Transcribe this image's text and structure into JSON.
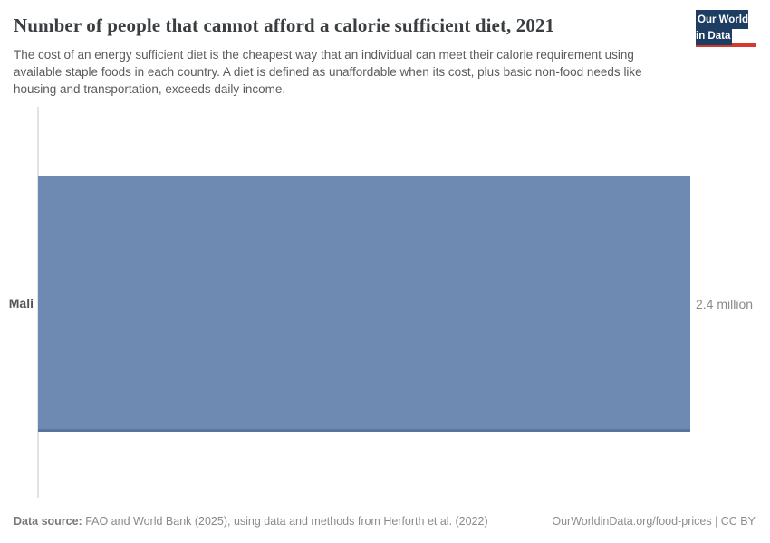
{
  "header": {
    "title": "Number of people that cannot afford a calorie sufficient diet, 2021",
    "subtitle": "The cost of an energy sufficient diet is the cheapest way that an individual can meet their calorie requirement using available staple foods in each country. A diet is defined as unaffordable when its cost, plus basic non-food needs like housing and transportation, exceeds daily income.",
    "logo": {
      "line1": "Our World",
      "line2": "in Data",
      "background_color": "#1d3d63",
      "accent_color": "#d4392e"
    }
  },
  "chart_data": {
    "type": "bar",
    "orientation": "horizontal",
    "title": "Number of people that cannot afford a calorie sufficient diet, 2021",
    "year": "2021",
    "categories": [
      "Mali"
    ],
    "values": [
      2400000
    ],
    "value_labels": [
      "2.4 million"
    ],
    "xlim": [
      0,
      2400000
    ],
    "grid": false,
    "legend": false,
    "bar_color": "#6e8ab2",
    "bar_edge_color": "#5b73a0",
    "axis_line_color": "#e4e4e4"
  },
  "footer": {
    "source_label": "Data source:",
    "source_text": " FAO and World Bank (2025), using data and methods from Herforth et al. (2022)",
    "link_text": "OurWorldinData.org/food-prices | CC BY"
  }
}
